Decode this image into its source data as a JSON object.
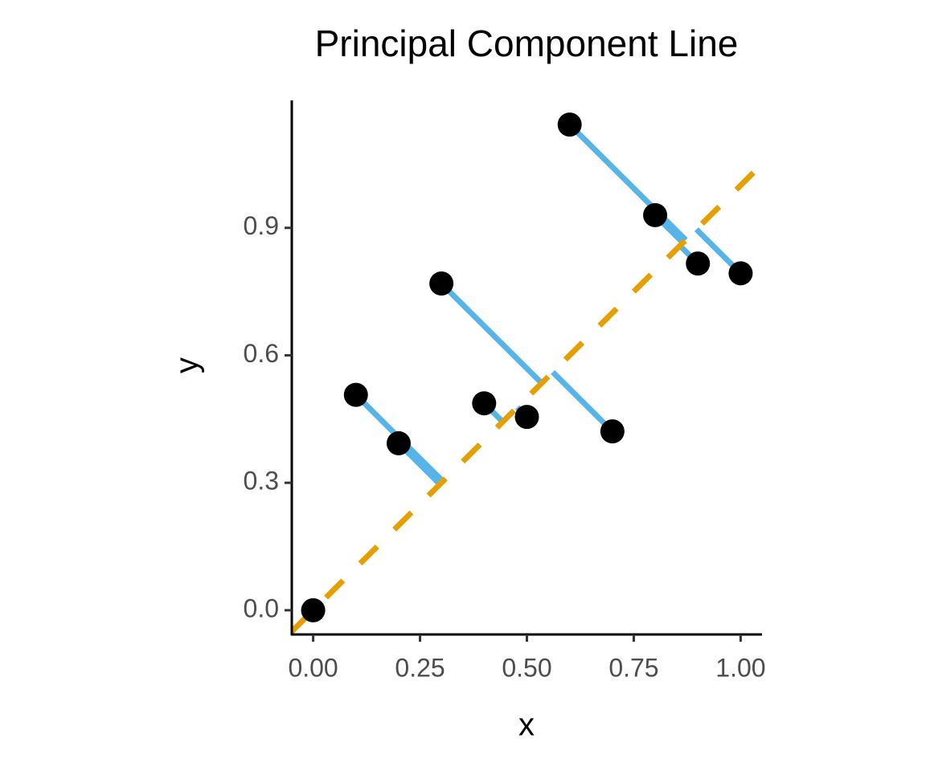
{
  "chart_data": {
    "type": "scatter",
    "title": "Principal Component Line",
    "x_label": "x",
    "y_label": "y",
    "x": [
      0,
      0.1,
      0.2,
      0.3,
      0.4,
      0.5,
      0.6,
      0.7,
      0.8,
      0.9,
      1.0
    ],
    "y": [
      0,
      0.507,
      0.393,
      0.769,
      0.487,
      0.455,
      1.143,
      0.421,
      0.93,
      0.816,
      0.793
    ],
    "color": "#000000",
    "projection_color": "#56B4E9",
    "pc_line": {
      "slope": 1,
      "intercept": 0,
      "color": "#E69F00"
    },
    "xlim": [
      -0.05,
      1.05
    ],
    "ylim": [
      -0.057,
      1.2
    ],
    "xticks": [
      {
        "value": 0,
        "label": "0.00"
      },
      0.25,
      {
        "value": 0.5,
        "label": "0.50"
      },
      0.75,
      {
        "value": 1,
        "label": "1.00"
      }
    ],
    "yticks": [
      {
        "value": 0,
        "label": "0.0"
      },
      0.3,
      0.6,
      0.9
    ],
    "grid": false
  }
}
